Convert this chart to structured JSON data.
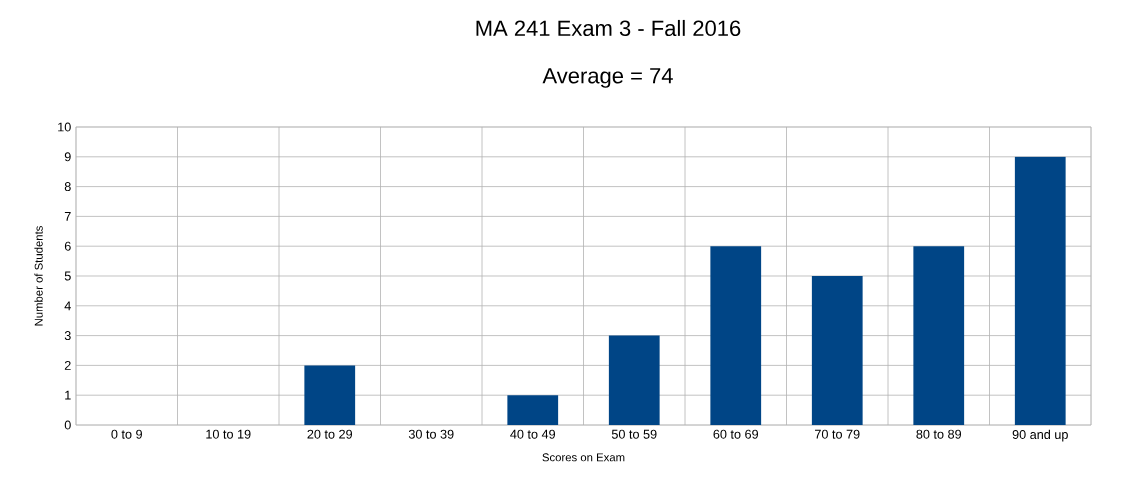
{
  "chart_data": {
    "type": "bar",
    "title": "MA 241 Exam 3 - Fall 2016",
    "subtitle": "Average = 74",
    "xlabel": "Scores on Exam",
    "ylabel": "Number of Students",
    "categories": [
      "0 to 9",
      "10 to 19",
      "20 to 29",
      "30 to 39",
      "40 to 49",
      "50 to 59",
      "60 to 69",
      "70 to 79",
      "80 to 89",
      "90 and up"
    ],
    "values": [
      0,
      0,
      2,
      0,
      1,
      3,
      6,
      5,
      6,
      9
    ],
    "color": "#004586",
    "ylim": [
      0,
      10
    ],
    "yticks": [
      0,
      1,
      2,
      3,
      4,
      5,
      6,
      7,
      8,
      9,
      10
    ],
    "grid": true
  }
}
